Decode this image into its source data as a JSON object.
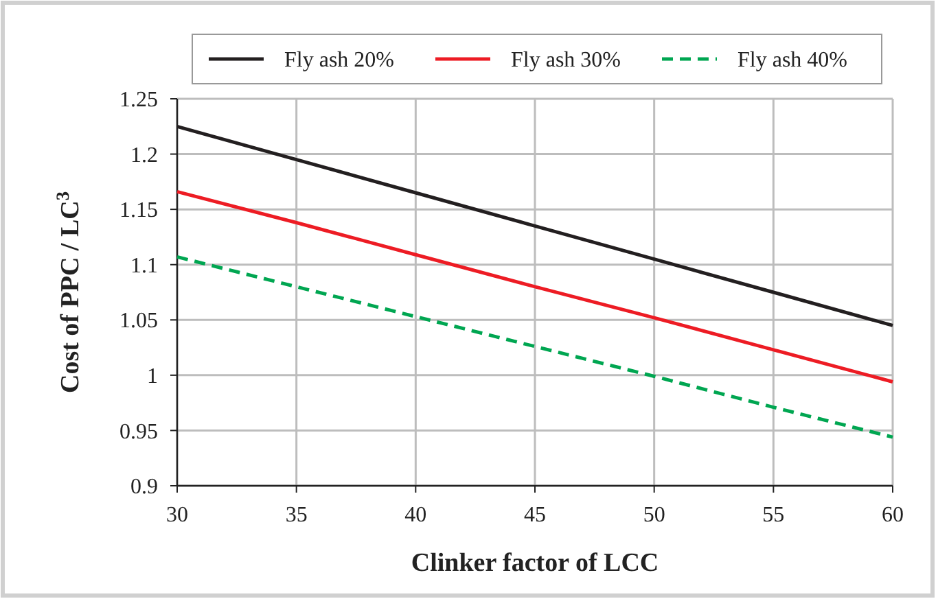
{
  "chart_data": {
    "type": "line",
    "xlabel": "Clinker factor of LCC",
    "ylabel": "Cost of PPC / LC$^{3}$",
    "x": [
      30,
      35,
      40,
      45,
      50,
      55,
      60
    ],
    "series": [
      {
        "name": "Fly ash 20%",
        "color": "#231f20",
        "line_style": "solid",
        "values": [
          1.225,
          1.195,
          1.165,
          1.135,
          1.105,
          1.075,
          1.045
        ]
      },
      {
        "name": "Fly ash 30%",
        "color": "#ed1c24",
        "line_style": "solid",
        "values": [
          1.166,
          1.138,
          1.109,
          1.08,
          1.052,
          1.023,
          0.994
        ]
      },
      {
        "name": "Fly ash 40%",
        "color": "#00a651",
        "line_style": "dashed",
        "values": [
          1.107,
          1.08,
          1.053,
          1.026,
          0.999,
          0.971,
          0.944
        ]
      }
    ],
    "xlim": [
      30,
      60
    ],
    "xticks": [
      30,
      35,
      40,
      45,
      50,
      55,
      60
    ],
    "ylim": [
      0.9,
      1.25
    ],
    "yticks": [
      0.9,
      0.95,
      1,
      1.05,
      1.1,
      1.15,
      1.2,
      1.25
    ],
    "grid": true,
    "legend": "top"
  }
}
